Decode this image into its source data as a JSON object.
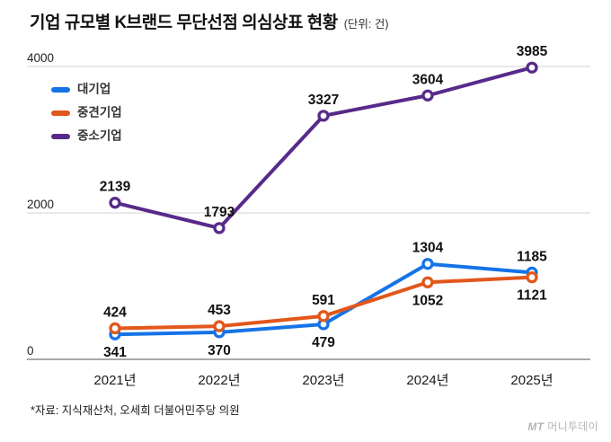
{
  "header": {
    "title": "기업 규모별 K브랜드 무단선점 의심상표 현황",
    "unit": "(단위: 건)"
  },
  "footnote": "*자료: 지식재산처, 오세희 더불어민주당 의원",
  "logo": {
    "mt": "MT",
    "name": "머니투데이"
  },
  "colors": {
    "grid_line": "#d9d9d9",
    "axis_line": "#8c8c8c",
    "title": "#111111",
    "data_label": "#111111",
    "logo": "#b5b5b5"
  },
  "chart_data": {
    "type": "line",
    "title": "기업 규모별 K브랜드 무단선점 의심상표 현황",
    "unit_label": "(단위: 건)",
    "categories": [
      "2021년",
      "2022년",
      "2023년",
      "2024년",
      "2025년"
    ],
    "series": [
      {
        "name": "대기업",
        "color": "#1673e6",
        "values": [
          341,
          370,
          479,
          1304,
          1185
        ],
        "label_pos": [
          "below",
          "below",
          "below",
          "above",
          "above"
        ]
      },
      {
        "name": "중견기업",
        "color": "#e2571b",
        "values": [
          424,
          453,
          591,
          1052,
          1121
        ],
        "label_pos": [
          "above",
          "above",
          "above",
          "below",
          "below"
        ]
      },
      {
        "name": "중소기업",
        "color": "#572a8a",
        "values": [
          2139,
          1793,
          3327,
          3604,
          3985
        ],
        "label_pos": [
          "above",
          "above",
          "above",
          "above",
          "above"
        ]
      }
    ],
    "ylim": [
      0,
      4000
    ],
    "yticks": [
      0,
      2000,
      4000
    ],
    "grid": true,
    "legend_position": "top-left"
  }
}
